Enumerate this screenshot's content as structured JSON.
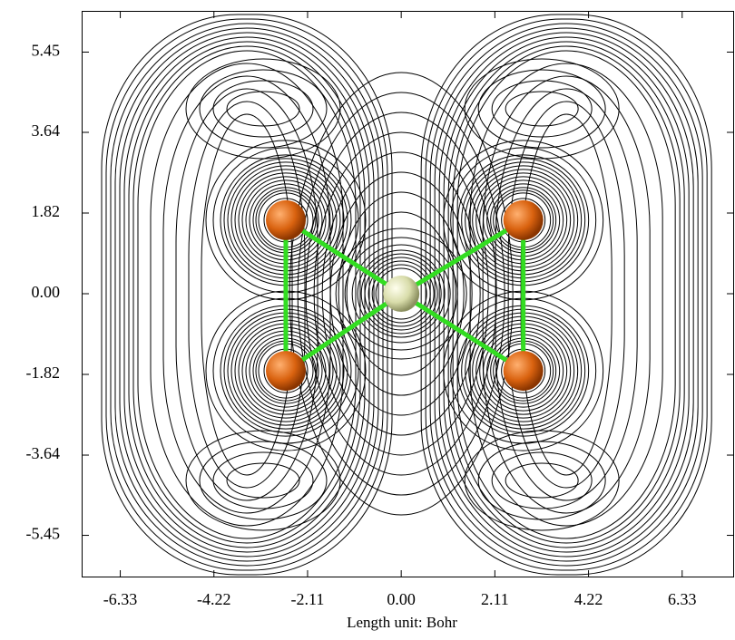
{
  "chart_data": {
    "type": "contour",
    "xlabel": "Length unit: Bohr",
    "xlim": [
      -7.2,
      7.5
    ],
    "ylim": [
      -6.4,
      6.38
    ],
    "xticks": [
      -6.33,
      -4.22,
      -2.11,
      {
        "value": 0,
        "label": "0.00"
      },
      2.11,
      4.22,
      6.33
    ],
    "yticks": [
      -5.45,
      -3.64,
      -1.82,
      {
        "value": 0,
        "label": "0.00"
      },
      1.82,
      3.64,
      5.45
    ],
    "atoms": [
      {
        "x": -2.6,
        "y": 1.66,
        "color": "#d9620f"
      },
      {
        "x": -2.6,
        "y": -1.74,
        "color": "#d9620f"
      },
      {
        "x": 2.75,
        "y": 1.66,
        "color": "#d9620f"
      },
      {
        "x": 2.75,
        "y": -1.74,
        "color": "#d9620f"
      },
      {
        "x": 0,
        "y": 0,
        "color": "#d8dcaa"
      }
    ],
    "bond_color": "#33dd22"
  }
}
